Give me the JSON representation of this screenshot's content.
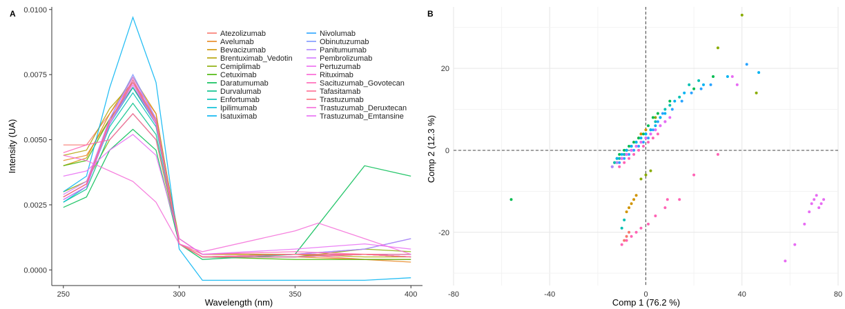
{
  "chart_data": [
    {
      "panel": "A",
      "type": "line",
      "xlabel": "Wavelength (nm)",
      "ylabel": "Intensity (UA)",
      "xlim": [
        245,
        405
      ],
      "ylim": [
        -0.0006,
        0.0101
      ],
      "x_ticks": [
        250,
        300,
        350,
        400
      ],
      "y_ticks": [
        0.0,
        0.0025,
        0.005,
        0.0075,
        0.01
      ],
      "y_tick_labels": [
        "0.0000",
        "0.0025",
        "0.0050",
        "0.0075",
        "0.0100"
      ],
      "grid": false,
      "legend_position": "top-right",
      "series": [
        {
          "name": "Atezolizumab",
          "color": "#F8766D",
          "x": [
            250,
            260,
            270,
            280,
            290,
            300,
            310,
            350,
            380,
            400
          ],
          "values": [
            0.0048,
            0.0048,
            0.006,
            0.0072,
            0.006,
            0.001,
            0.0006,
            0.0006,
            0.0004,
            0.0004
          ]
        },
        {
          "name": "Avelumab",
          "color": "#E7851E",
          "x": [
            250,
            260,
            270,
            280,
            290,
            300,
            310,
            350,
            380,
            400
          ],
          "values": [
            0.0042,
            0.0044,
            0.0058,
            0.007,
            0.0058,
            0.001,
            0.0005,
            0.0005,
            0.0004,
            0.0003
          ]
        },
        {
          "name": "Bevacizumab",
          "color": "#D09400",
          "x": [
            250,
            260,
            270,
            280,
            290,
            300,
            310,
            350,
            380,
            400
          ],
          "values": [
            0.004,
            0.0043,
            0.006,
            0.0074,
            0.006,
            0.001,
            0.0005,
            0.0005,
            0.0006,
            0.0005
          ]
        },
        {
          "name": "Brentuximab_Vedotin",
          "color": "#B2A100",
          "x": [
            250,
            260,
            270,
            280,
            290,
            300,
            310,
            350,
            380,
            400
          ],
          "values": [
            0.0044,
            0.0046,
            0.0062,
            0.0072,
            0.0058,
            0.0012,
            0.0006,
            0.0006,
            0.0005,
            0.0005
          ]
        },
        {
          "name": "Cemiplimab",
          "color": "#89AC00",
          "x": [
            250,
            260,
            270,
            280,
            290,
            300,
            310,
            350,
            380,
            400
          ],
          "values": [
            0.003,
            0.0034,
            0.005,
            0.006,
            0.005,
            0.001,
            0.0005,
            0.0005,
            0.0008,
            0.0007
          ]
        },
        {
          "name": "Cetuximab",
          "color": "#45B500",
          "x": [
            250,
            260,
            270,
            280,
            290,
            300,
            310,
            350,
            380,
            400
          ],
          "values": [
            0.004,
            0.0042,
            0.0058,
            0.007,
            0.0056,
            0.001,
            0.0005,
            0.0004,
            0.0004,
            0.0004
          ]
        },
        {
          "name": "Daratumumab",
          "color": "#00BC51",
          "x": [
            250,
            260,
            270,
            280,
            290,
            300,
            310,
            350,
            380,
            400
          ],
          "values": [
            0.0024,
            0.0028,
            0.0046,
            0.0054,
            0.0046,
            0.001,
            0.0004,
            0.0006,
            0.004,
            0.0036
          ]
        },
        {
          "name": "Durvalumab",
          "color": "#00C087",
          "x": [
            250,
            260,
            270,
            280,
            290,
            300,
            310,
            350,
            380,
            400
          ],
          "values": [
            0.0026,
            0.0031,
            0.0052,
            0.0064,
            0.0052,
            0.001,
            0.0005,
            0.0005,
            0.0006,
            0.0005
          ]
        },
        {
          "name": "Enfortumab",
          "color": "#00C0B2",
          "x": [
            250,
            260,
            270,
            280,
            290,
            300,
            310,
            350,
            380,
            400
          ],
          "values": [
            0.0028,
            0.0033,
            0.0055,
            0.0068,
            0.0055,
            0.001,
            0.0005,
            0.0006,
            0.0006,
            0.0006
          ]
        },
        {
          "name": "Ipilimumab",
          "color": "#00BCD6",
          "x": [
            250,
            260,
            270,
            280,
            290,
            300,
            310,
            350,
            380,
            400
          ],
          "values": [
            0.0026,
            0.0032,
            0.0056,
            0.007,
            0.0056,
            0.001,
            0.0005,
            0.0006,
            0.0008,
            0.0012
          ]
        },
        {
          "name": "Isatuximab",
          "color": "#00B3F2",
          "x": [
            250,
            260,
            270,
            280,
            290,
            300,
            310,
            350,
            380,
            400
          ],
          "values": [
            0.003,
            0.0036,
            0.007,
            0.0097,
            0.0072,
            0.0008,
            -0.0004,
            -0.0004,
            -0.0004,
            -0.0003
          ]
        },
        {
          "name": "Nivolumab",
          "color": "#29A3FF",
          "x": [
            250,
            260,
            270,
            280,
            290,
            300,
            310,
            350,
            380,
            400
          ],
          "values": [
            0.0027,
            0.0032,
            0.0056,
            0.0072,
            0.0056,
            0.001,
            0.0005,
            0.0005,
            0.0006,
            0.0006
          ]
        },
        {
          "name": "Obinutuzumab",
          "color": "#7C96FF",
          "x": [
            250,
            260,
            270,
            280,
            290,
            300,
            310,
            350,
            380,
            400
          ],
          "values": [
            0.0028,
            0.0033,
            0.0058,
            0.0075,
            0.0058,
            0.001,
            0.0005,
            0.0005,
            0.0006,
            0.0006
          ]
        },
        {
          "name": "Panitumumab",
          "color": "#AE87FF",
          "x": [
            250,
            260,
            270,
            280,
            290,
            300,
            310,
            350,
            380,
            400
          ],
          "values": [
            0.0028,
            0.0033,
            0.0057,
            0.0073,
            0.0057,
            0.001,
            0.0005,
            0.0006,
            0.0006,
            0.0005
          ]
        },
        {
          "name": "Pembrolizumab",
          "color": "#D277FF",
          "x": [
            250,
            260,
            270,
            280,
            290,
            300,
            310,
            350,
            380,
            400
          ],
          "values": [
            0.0029,
            0.0034,
            0.0058,
            0.0074,
            0.0058,
            0.001,
            0.0005,
            0.0006,
            0.0008,
            0.0012
          ]
        },
        {
          "name": "Pertuzumab",
          "color": "#EC69EF",
          "x": [
            250,
            260,
            270,
            280,
            290,
            300,
            310,
            350,
            380,
            400
          ],
          "values": [
            0.0027,
            0.0032,
            0.0056,
            0.0071,
            0.0056,
            0.001,
            0.0005,
            0.0005,
            0.0006,
            0.0005
          ]
        },
        {
          "name": "Rituximab",
          "color": "#FA62D4",
          "x": [
            250,
            260,
            270,
            280,
            290,
            300,
            310,
            350,
            380,
            400
          ],
          "values": [
            0.0028,
            0.0033,
            0.0057,
            0.0072,
            0.0057,
            0.001,
            0.0005,
            0.0006,
            0.0006,
            0.0005
          ]
        },
        {
          "name": "Sacituzumab_Govotecan",
          "color": "#FF63B5",
          "x": [
            250,
            260,
            270,
            280,
            290,
            300,
            310,
            350,
            380,
            400
          ],
          "values": [
            0.0045,
            0.0048,
            0.005,
            0.006,
            0.005,
            0.0012,
            0.0006,
            0.0007,
            0.0006,
            0.0005
          ]
        },
        {
          "name": "Tafasitamab",
          "color": "#FF6C91",
          "x": [
            250,
            260,
            270,
            280,
            290,
            300,
            310,
            350,
            380,
            400
          ],
          "values": [
            0.0028,
            0.0033,
            0.0057,
            0.0072,
            0.0057,
            0.001,
            0.0005,
            0.0005,
            0.0006,
            0.0006
          ]
        },
        {
          "name": "Trastuzumab",
          "color": "#FB727A",
          "x": [
            250,
            260,
            270,
            280,
            290,
            300,
            310,
            350,
            380,
            400
          ],
          "values": [
            0.0028,
            0.0033,
            0.0057,
            0.0073,
            0.0057,
            0.001,
            0.0005,
            0.0006,
            0.0006,
            0.0005
          ]
        },
        {
          "name": "Trastuzumab_Deruxtecan",
          "color": "#F46BD8",
          "x": [
            250,
            260,
            270,
            280,
            290,
            300,
            310,
            350,
            360,
            380,
            400
          ],
          "values": [
            0.0044,
            0.0042,
            0.0038,
            0.0034,
            0.0026,
            0.001,
            0.0007,
            0.0015,
            0.0018,
            0.0012,
            0.0006
          ]
        },
        {
          "name": "Trastuzumab_Emtansine",
          "color": "#E76BF3",
          "x": [
            250,
            260,
            270,
            280,
            290,
            300,
            310,
            350,
            380,
            400
          ],
          "values": [
            0.0036,
            0.0038,
            0.0046,
            0.0052,
            0.0044,
            0.0012,
            0.0006,
            0.0008,
            0.001,
            0.0008
          ]
        }
      ]
    },
    {
      "panel": "B",
      "type": "scatter",
      "xlabel": "Comp 1 (76.2 %)",
      "ylabel": "Comp 2 (12.3 %)",
      "xlim": [
        -80,
        80
      ],
      "ylim": [
        -33,
        35
      ],
      "x_ticks": [
        -80,
        -40,
        0,
        40,
        80
      ],
      "y_ticks": [
        -20,
        0,
        20
      ],
      "grid": true,
      "reference_lines": [
        {
          "axis": "x",
          "value": 0
        },
        {
          "axis": "y",
          "value": 0
        }
      ],
      "series": [
        {
          "color": "#F8766D",
          "x": [
            -14,
            -12,
            -10,
            -9,
            -8,
            -6,
            -5,
            -3,
            -2,
            -9,
            -8,
            -7
          ],
          "y": [
            -4,
            -3,
            -2,
            -1,
            0,
            1,
            2,
            3,
            4,
            -22,
            -21,
            -20
          ]
        },
        {
          "color": "#D09400",
          "x": [
            -13,
            -11,
            -9,
            -8,
            -6,
            -4,
            -3,
            -2,
            0,
            -8,
            -7,
            -6,
            -5,
            -4
          ],
          "y": [
            -3,
            -2,
            -1,
            0,
            1,
            2,
            3,
            4,
            5,
            -15,
            -14,
            -13,
            -12,
            -11
          ]
        },
        {
          "color": "#89AC00",
          "x": [
            -12,
            -10,
            -8,
            -6,
            -4,
            -2,
            0,
            2,
            4,
            30,
            40,
            46,
            -2,
            0,
            2
          ],
          "y": [
            -3,
            -2,
            -1,
            0,
            1,
            2,
            3,
            5,
            8,
            25,
            33,
            14,
            -7,
            -6,
            -5
          ]
        },
        {
          "color": "#00BC51",
          "x": [
            -12,
            -11,
            -9,
            -7,
            -5,
            -3,
            -1,
            1,
            3,
            5,
            -56,
            10,
            20,
            28
          ],
          "y": [
            -2,
            -1,
            0,
            1,
            2,
            3,
            4,
            6,
            8,
            9,
            -12,
            12,
            15,
            18
          ]
        },
        {
          "color": "#00C0B2",
          "x": [
            -13,
            -11,
            -9,
            -8,
            -6,
            -4,
            -2,
            0,
            2,
            4,
            6,
            8,
            10,
            14,
            18,
            22,
            -10,
            -9
          ],
          "y": [
            -3,
            -2,
            -1,
            0,
            1,
            2,
            3,
            4,
            5,
            7,
            8,
            10,
            11,
            13,
            16,
            17,
            -19,
            -17
          ]
        },
        {
          "color": "#00B3F2",
          "x": [
            -12,
            -10,
            -8,
            -6,
            -4,
            -2,
            0,
            2,
            4,
            6,
            8,
            12,
            16,
            24,
            34,
            47
          ],
          "y": [
            -2,
            -1,
            0,
            1,
            2,
            3,
            4,
            5,
            6,
            8,
            9,
            12,
            14,
            16,
            18,
            19
          ]
        },
        {
          "color": "#29A3FF",
          "x": [
            -11,
            -9,
            -7,
            -5,
            -3,
            -1,
            1,
            3,
            5,
            7,
            11,
            15,
            19,
            23,
            27,
            42
          ],
          "y": [
            -3,
            -2,
            -1,
            0,
            1,
            2,
            3,
            5,
            7,
            9,
            10,
            12,
            14,
            15,
            16,
            21
          ]
        },
        {
          "color": "#AE87FF",
          "x": [
            -14,
            -12,
            -10,
            -8,
            -6,
            -4,
            -2,
            0,
            2,
            4,
            6,
            8
          ],
          "y": [
            -4,
            -3,
            -2,
            -1,
            0,
            1,
            2,
            3,
            4,
            5,
            6,
            7
          ]
        },
        {
          "color": "#E76BF3",
          "x": [
            -10,
            -8,
            -6,
            -4,
            -2,
            0,
            2,
            4,
            6,
            8,
            10,
            58,
            62,
            66,
            68,
            69,
            70,
            71,
            72,
            73,
            74,
            36,
            38
          ],
          "y": [
            -2,
            -1,
            0,
            1,
            2,
            3,
            4,
            5,
            6,
            7,
            8,
            -27,
            -23,
            -18,
            -15,
            -13,
            -12,
            -11,
            -14,
            -13,
            -12,
            18,
            16
          ]
        },
        {
          "color": "#FF63B5",
          "x": [
            -11,
            -9,
            -7,
            -5,
            -3,
            -1,
            1,
            3,
            5,
            -10,
            -8,
            -6,
            -4,
            -2,
            1,
            4,
            8,
            14,
            20,
            30,
            9
          ],
          "y": [
            -4,
            -3,
            -2,
            -1,
            0,
            1,
            2,
            3,
            4,
            -23,
            -22,
            -21,
            -20,
            -19,
            -18,
            -16,
            -14,
            -12,
            -6,
            -1,
            -12
          ]
        }
      ]
    }
  ]
}
